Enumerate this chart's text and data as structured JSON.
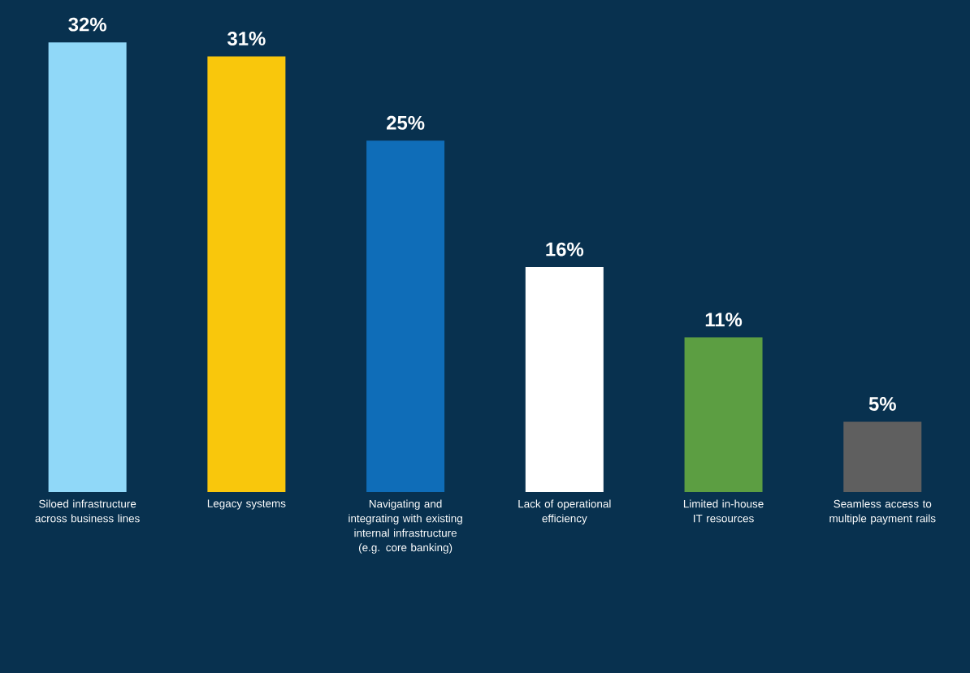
{
  "chart_data": {
    "type": "bar",
    "categories": [
      "Siloed infrastructure across business lines",
      "Legacy systems",
      "Navigating and integrating with existing internal infrastructure (e.g. core banking)",
      "Lack of operational efficiency",
      "Limited in-house IT resources",
      "Seamless access to multiple payment rails"
    ],
    "values": [
      32,
      31,
      25,
      16,
      11,
      5
    ],
    "value_labels": [
      "32%",
      "31%",
      "25%",
      "16%",
      "11%",
      "5%"
    ],
    "colors": [
      "#90d8f8",
      "#f9c70c",
      "#0f6db8",
      "#ffffff",
      "#5c9e42",
      "#5f5f5f"
    ]
  }
}
